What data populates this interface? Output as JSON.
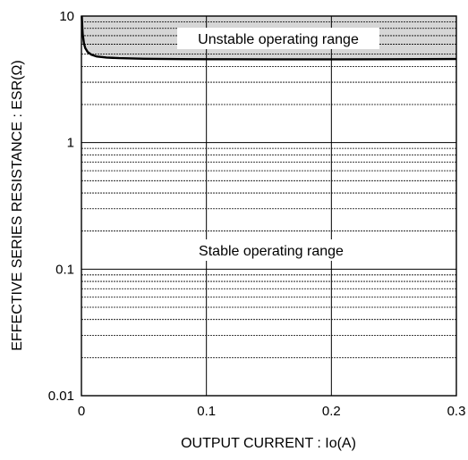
{
  "chart_data": {
    "type": "line",
    "xlabel": "OUTPUT CURRENT : Io(A)",
    "ylabel": "EFFECTIVE SERIES RESISTANCE : ESR(Ω)",
    "xlim": [
      0,
      0.3
    ],
    "ylim": [
      0.01,
      10
    ],
    "y_scale": "log",
    "x_ticks": [
      0,
      0.1,
      0.2,
      0.3
    ],
    "x_tick_labels": [
      "0",
      "0.1",
      "0.2",
      "0.3"
    ],
    "y_ticks": [
      0.01,
      0.1,
      1,
      10
    ],
    "y_tick_labels": [
      "0.01",
      "0.1",
      "1",
      "10"
    ],
    "grid": true,
    "series": [
      {
        "x": [
          0.0003,
          0.0006,
          0.001,
          0.002,
          0.003,
          0.005,
          0.008,
          0.012,
          0.02,
          0.03,
          0.05,
          0.08,
          0.1,
          0.15,
          0.2,
          0.25,
          0.3
        ],
        "values": [
          10,
          8.5,
          7.2,
          6.1,
          5.6,
          5.2,
          4.95,
          4.8,
          4.7,
          4.65,
          4.6,
          4.57,
          4.56,
          4.55,
          4.55,
          4.56,
          4.58
        ]
      }
    ],
    "annotations": {
      "unstable": "Unstable operating range",
      "stable": "Stable operating range"
    },
    "colors": {
      "unstable_fill": "#d6d6d6",
      "curve": "#000000",
      "grid": "#000000"
    }
  }
}
